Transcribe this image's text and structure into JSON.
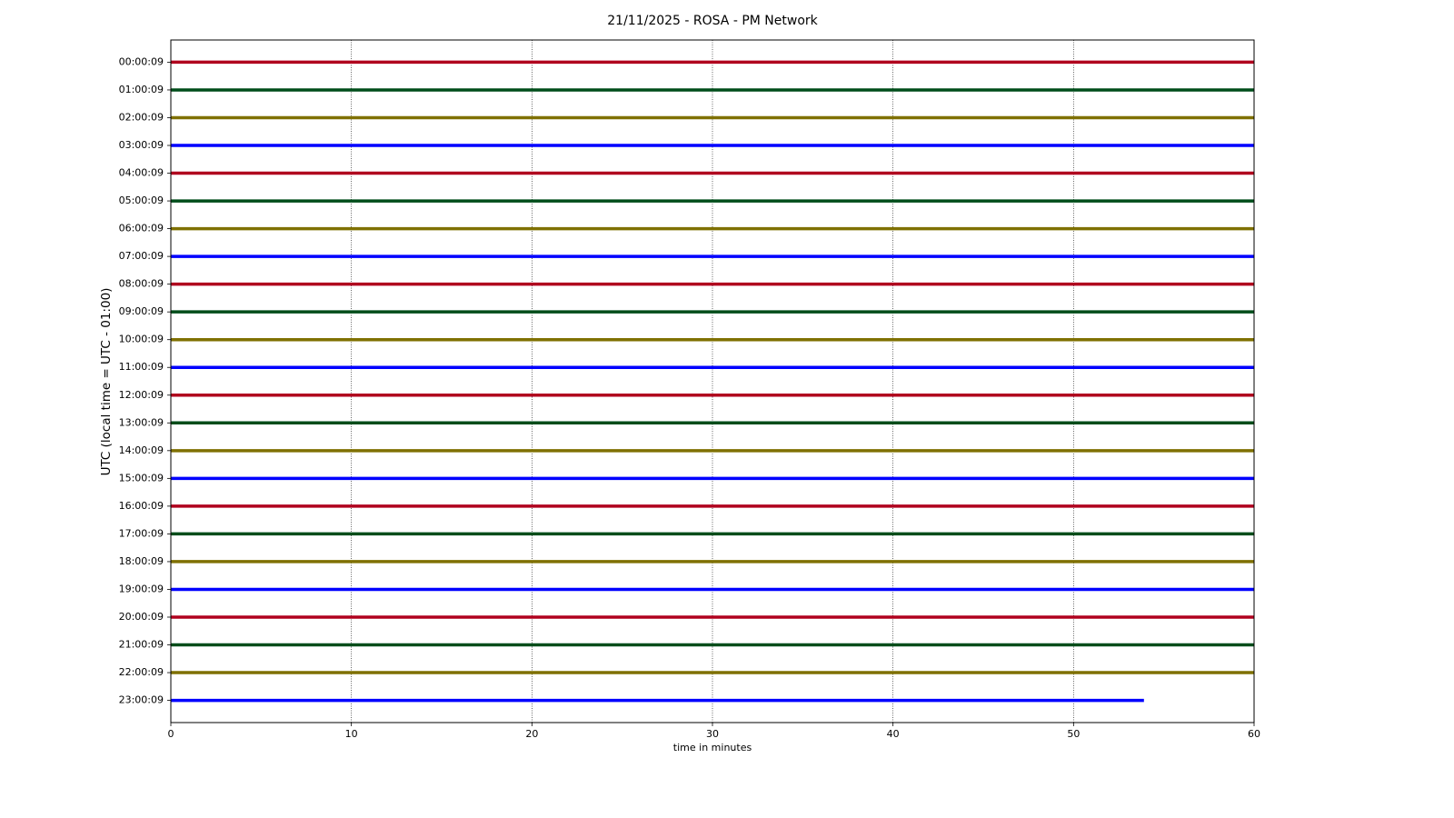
{
  "chart_data": {
    "type": "helicorder",
    "title": "21/11/2025 - ROSA - PM Network",
    "xlabel": "time in minutes",
    "ylabel": "UTC (local time = UTC - 01:00)",
    "xlim": [
      0,
      60
    ],
    "xticks": [
      0,
      10,
      20,
      30,
      40,
      50,
      60
    ],
    "grid": true,
    "categories": [
      "00:00:09",
      "01:00:09",
      "02:00:09",
      "03:00:09",
      "04:00:09",
      "05:00:09",
      "06:00:09",
      "07:00:09",
      "08:00:09",
      "09:00:09",
      "10:00:09",
      "11:00:09",
      "12:00:09",
      "13:00:09",
      "14:00:09",
      "15:00:09",
      "16:00:09",
      "17:00:09",
      "18:00:09",
      "19:00:09",
      "20:00:09",
      "21:00:09",
      "22:00:09",
      "23:00:09"
    ],
    "traces": [
      {
        "color": "#b0001e",
        "x": [
          0,
          60
        ]
      },
      {
        "color": "#004d1a",
        "x": [
          0,
          60
        ]
      },
      {
        "color": "#7f7000",
        "x": [
          0,
          60
        ]
      },
      {
        "color": "#0000ff",
        "x": [
          0,
          60
        ]
      },
      {
        "color": "#b0001e",
        "x": [
          0,
          60
        ]
      },
      {
        "color": "#004d1a",
        "x": [
          0,
          60
        ]
      },
      {
        "color": "#7f7000",
        "x": [
          0,
          60
        ]
      },
      {
        "color": "#0000ff",
        "x": [
          0,
          60
        ]
      },
      {
        "color": "#b0001e",
        "x": [
          0,
          60
        ]
      },
      {
        "color": "#004d1a",
        "x": [
          0,
          60
        ]
      },
      {
        "color": "#7f7000",
        "x": [
          0,
          60
        ]
      },
      {
        "color": "#0000ff",
        "x": [
          0,
          60
        ]
      },
      {
        "color": "#b0001e",
        "x": [
          0,
          60
        ]
      },
      {
        "color": "#004d1a",
        "x": [
          0,
          60
        ]
      },
      {
        "color": "#7f7000",
        "x": [
          0,
          60
        ]
      },
      {
        "color": "#0000ff",
        "x": [
          0,
          60
        ]
      },
      {
        "color": "#b0001e",
        "x": [
          0,
          60
        ]
      },
      {
        "color": "#004d1a",
        "x": [
          0,
          60
        ]
      },
      {
        "color": "#7f7000",
        "x": [
          0,
          60
        ]
      },
      {
        "color": "#0000ff",
        "x": [
          0,
          60
        ]
      },
      {
        "color": "#b0001e",
        "x": [
          0,
          60
        ]
      },
      {
        "color": "#004d1a",
        "x": [
          0,
          60
        ]
      },
      {
        "color": "#7f7000",
        "x": [
          0,
          60
        ]
      },
      {
        "color": "#0000ff",
        "x": [
          0,
          53.9
        ]
      }
    ]
  }
}
